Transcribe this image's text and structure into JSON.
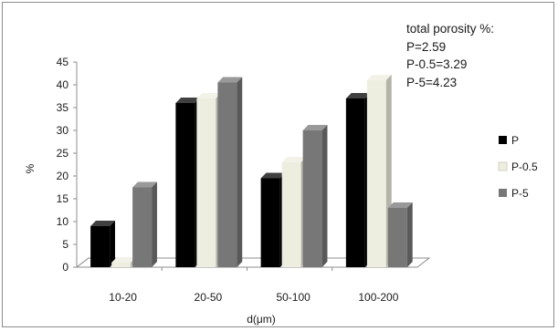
{
  "chart_data": {
    "type": "bar",
    "categories": [
      "10-20",
      "20-50",
      "50-100",
      "100-200"
    ],
    "series": [
      {
        "name": "P",
        "values": [
          9,
          36,
          19.5,
          37
        ],
        "color": "#000000"
      },
      {
        "name": "P-0.5",
        "values": [
          1,
          37,
          23,
          41
        ],
        "color": "#eeeee0"
      },
      {
        "name": "P-5",
        "values": [
          17.5,
          40.5,
          30,
          13
        ],
        "color": "#777777"
      }
    ],
    "xlabel": "d(μm)",
    "ylabel": "%",
    "ylim": [
      0,
      45
    ],
    "yticks": [
      "0",
      "5",
      "10",
      "15",
      "20",
      "25",
      "30",
      "35",
      "40",
      "45"
    ],
    "legend_position": "right",
    "grid": false,
    "annotation": {
      "title": "total porosity %:",
      "lines": [
        "P=2.59",
        "P-0.5=3.29",
        "P-5=4.23"
      ]
    }
  }
}
